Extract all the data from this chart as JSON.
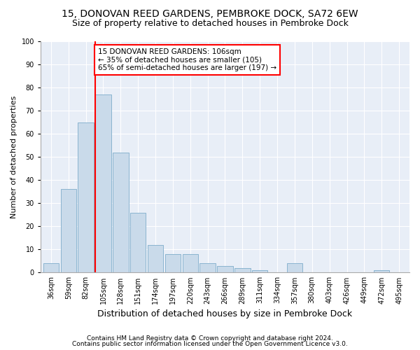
{
  "title1": "15, DONOVAN REED GARDENS, PEMBROKE DOCK, SA72 6EW",
  "title2": "Size of property relative to detached houses in Pembroke Dock",
  "xlabel": "Distribution of detached houses by size in Pembroke Dock",
  "ylabel": "Number of detached properties",
  "categories": [
    "36sqm",
    "59sqm",
    "82sqm",
    "105sqm",
    "128sqm",
    "151sqm",
    "174sqm",
    "197sqm",
    "220sqm",
    "243sqm",
    "266sqm",
    "289sqm",
    "311sqm",
    "334sqm",
    "357sqm",
    "380sqm",
    "403sqm",
    "426sqm",
    "449sqm",
    "472sqm",
    "495sqm"
  ],
  "values": [
    4,
    36,
    65,
    77,
    52,
    26,
    12,
    8,
    8,
    4,
    3,
    2,
    1,
    0,
    4,
    0,
    0,
    0,
    0,
    1,
    0
  ],
  "bar_color": "#c9daea",
  "bar_edge_color": "#8ab4d0",
  "red_line_index": 3,
  "annotation_text": "15 DONOVAN REED GARDENS: 106sqm\n← 35% of detached houses are smaller (105)\n65% of semi-detached houses are larger (197) →",
  "annotation_box_facecolor": "white",
  "annotation_box_edgecolor": "red",
  "ylim": [
    0,
    100
  ],
  "yticks": [
    0,
    10,
    20,
    30,
    40,
    50,
    60,
    70,
    80,
    90,
    100
  ],
  "footer1": "Contains HM Land Registry data © Crown copyright and database right 2024.",
  "footer2": "Contains public sector information licensed under the Open Government Licence v3.0.",
  "bg_color": "#ffffff",
  "plot_bg_color": "#e8eef7",
  "grid_color": "#ffffff",
  "title1_fontsize": 10,
  "title2_fontsize": 9,
  "ylabel_fontsize": 8,
  "xlabel_fontsize": 9,
  "tick_fontsize": 7,
  "footer_fontsize": 6.5,
  "annot_fontsize": 7.5,
  "bar_width": 0.9
}
